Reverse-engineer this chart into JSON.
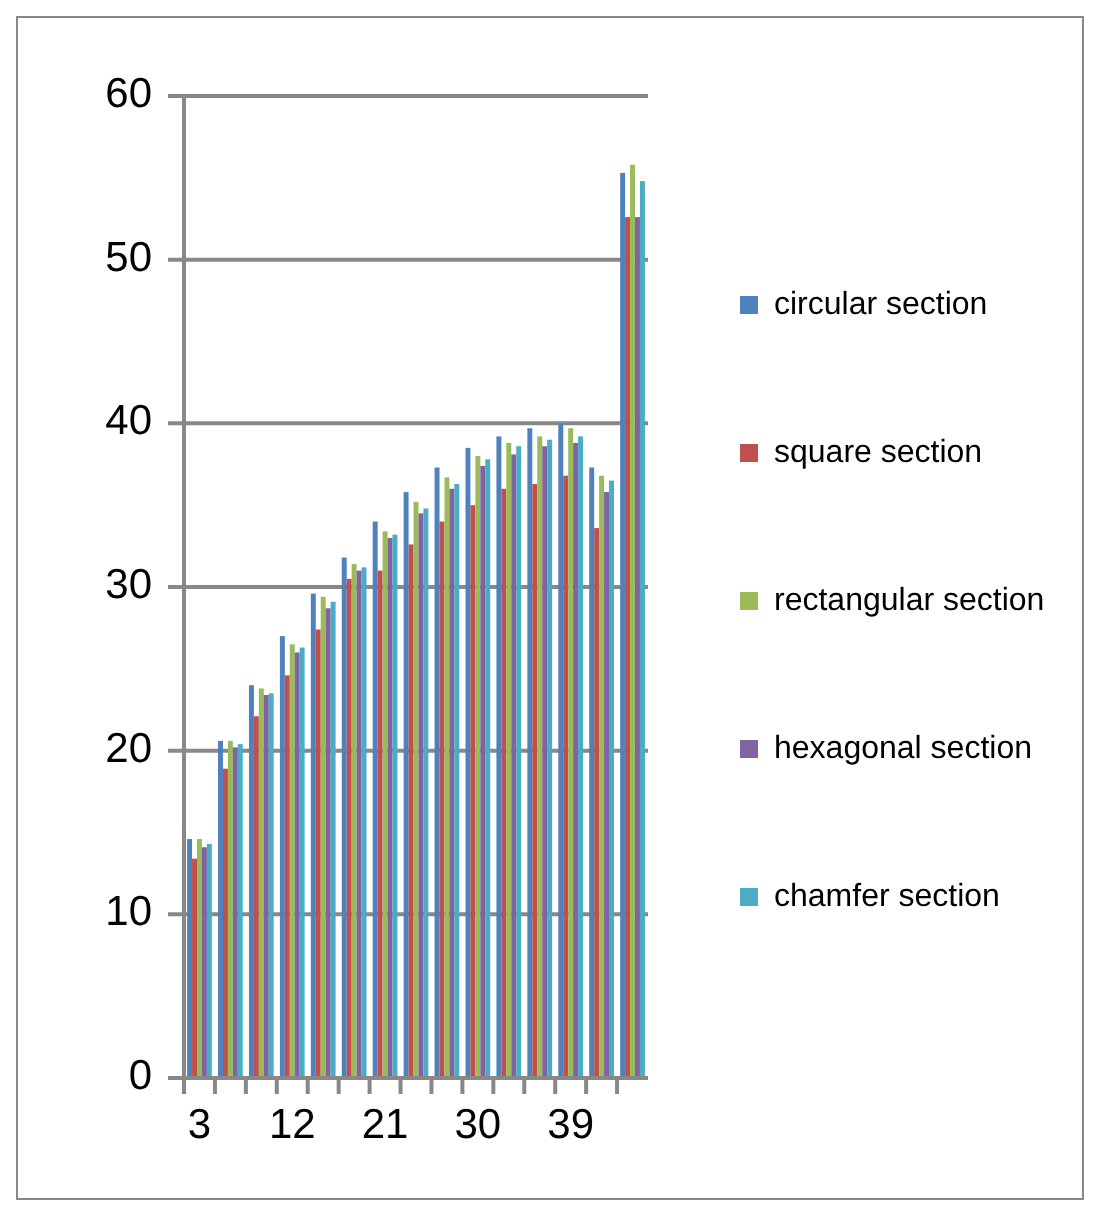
{
  "chart_data": {
    "type": "bar",
    "categories": [
      "3",
      null,
      null,
      "12",
      null,
      null,
      "21",
      null,
      null,
      "30",
      null,
      null,
      "39",
      null,
      null
    ],
    "series": [
      {
        "name": "circular section",
        "color": "#4f81bd",
        "values": [
          14.6,
          20.6,
          24,
          27,
          29.6,
          31.8,
          34,
          35.8,
          37.3,
          38.5,
          39.2,
          39.7,
          40,
          37.3,
          55.3
        ]
      },
      {
        "name": "square section",
        "color": "#c0504d",
        "values": [
          13.4,
          18.9,
          22.1,
          24.6,
          27.4,
          30.5,
          31,
          32.6,
          34,
          35,
          36,
          36.3,
          36.8,
          33.6,
          52.6
        ]
      },
      {
        "name": "rectangular section",
        "color": "#9bbb59",
        "values": [
          14.6,
          20.6,
          23.8,
          26.5,
          29.4,
          31.4,
          33.4,
          35.2,
          36.7,
          38,
          38.8,
          39.2,
          39.7,
          36.8,
          55.8
        ]
      },
      {
        "name": "hexagonal section",
        "color": "#8064a2",
        "values": [
          14.1,
          20.2,
          23.4,
          26,
          28.7,
          31,
          33,
          34.5,
          36,
          37.4,
          38.1,
          38.6,
          38.8,
          35.8,
          52.6
        ]
      },
      {
        "name": "chamfer section",
        "color": "#4bacc6",
        "values": [
          14.3,
          20.4,
          23.5,
          26.3,
          29.1,
          31.2,
          33.2,
          34.8,
          36.3,
          37.8,
          38.6,
          39,
          39.2,
          36.5,
          54.8
        ]
      }
    ],
    "ylim": [
      0,
      60
    ],
    "yticks": [
      0,
      10,
      20,
      30,
      40,
      50,
      60
    ],
    "grid": "y",
    "legend": "right"
  }
}
